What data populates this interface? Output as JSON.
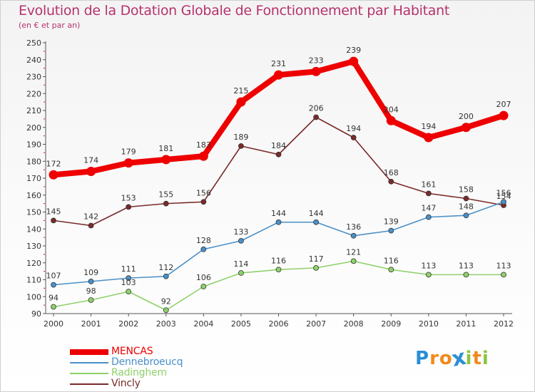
{
  "title": "Evolution de la Dotation Globale de Fonctionnement par Habitant",
  "subtitle": "(en € et par an)",
  "logo": {
    "letters": [
      "P",
      "r",
      "o",
      "x",
      "i",
      "t",
      "i"
    ],
    "colors": [
      "#2a8fd6",
      "#f08a1c",
      "#f08a1c",
      "#2a8fd6",
      "#8cc63f",
      "#f08a1c",
      "#8cc63f"
    ]
  },
  "chart_data": {
    "type": "line",
    "title": "Evolution de la Dotation Globale de Fonctionnement par Habitant",
    "subtitle": "(en € et par an)",
    "x": [
      "2000",
      "2001",
      "2002",
      "2003",
      "2004",
      "2005",
      "2006",
      "2007",
      "2008",
      "2009",
      "2010",
      "2011",
      "2012"
    ],
    "ylim": [
      90,
      250
    ],
    "yticks": [
      90,
      100,
      110,
      120,
      130,
      140,
      150,
      160,
      170,
      180,
      190,
      200,
      210,
      220,
      230,
      240,
      250
    ],
    "grid": false,
    "legend": "bottom-left",
    "series": [
      {
        "name": "MENCAS",
        "color": "#ee0000",
        "values": [
          172,
          174,
          179,
          181,
          183,
          215,
          231,
          233,
          239,
          204,
          194,
          200,
          207
        ]
      },
      {
        "name": "Dennebroeucq",
        "color": "#4a90c8",
        "values": [
          107,
          109,
          111,
          112,
          128,
          133,
          144,
          144,
          136,
          139,
          147,
          148,
          156
        ]
      },
      {
        "name": "Radinghem",
        "color": "#8fd16a",
        "values": [
          94,
          98,
          103,
          92,
          106,
          114,
          116,
          117,
          121,
          116,
          113,
          113,
          113
        ]
      },
      {
        "name": "Vincly",
        "color": "#7a2a2a",
        "values": [
          145,
          142,
          153,
          155,
          156,
          189,
          184,
          206,
          194,
          168,
          161,
          158,
          154
        ]
      }
    ]
  }
}
